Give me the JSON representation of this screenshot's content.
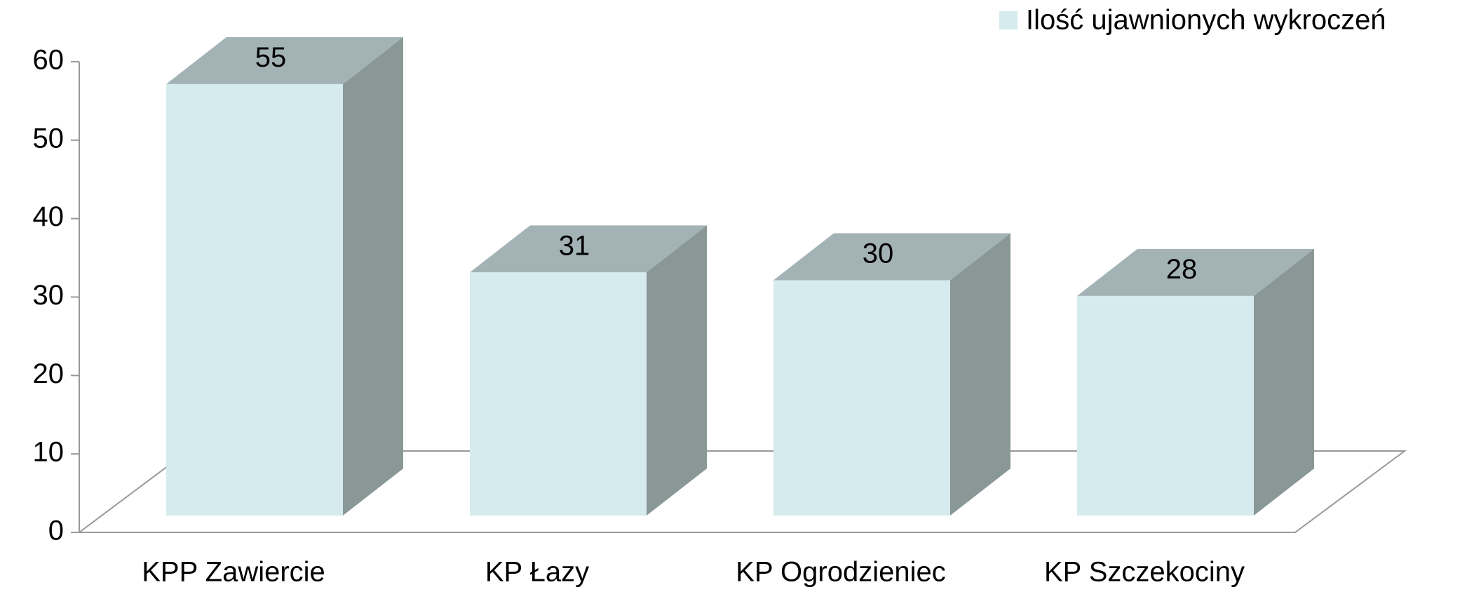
{
  "chart_data": {
    "type": "bar3d",
    "categories": [
      "KPP Zawiercie",
      "KP Łazy",
      "KP Ogrodzieniec",
      "KP Szczekociny"
    ],
    "series": [
      {
        "name": "Ilość ujawnionych wykroczeń",
        "color": "#d6ebee",
        "values": [
          55,
          31,
          30,
          28
        ]
      }
    ],
    "ylim": [
      0,
      60
    ],
    "yticks": [
      0,
      10,
      20,
      30,
      40,
      50,
      60
    ],
    "legend": "top-right"
  }
}
